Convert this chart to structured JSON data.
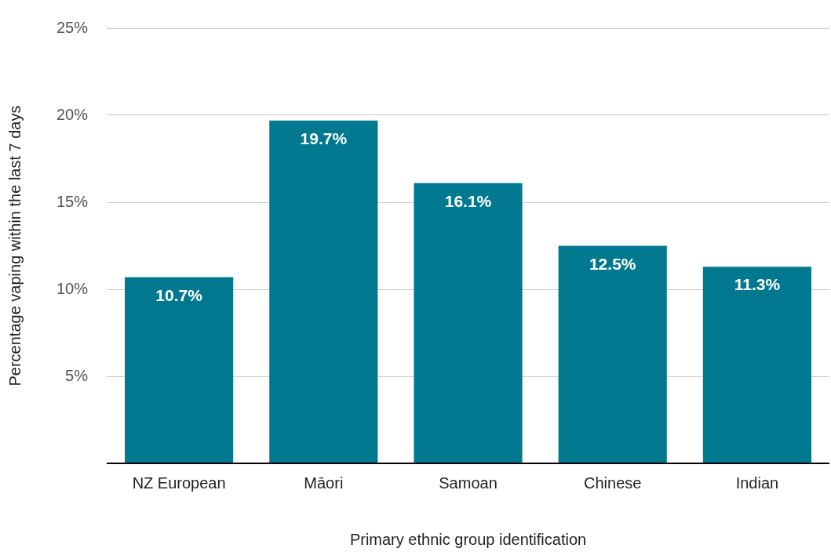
{
  "chart_data": {
    "type": "bar",
    "xlabel": "Primary ethnic group identification",
    "ylabel": "Percentage vaping within the last 7 days",
    "categories": [
      "NZ European",
      "Māori",
      "Samoan",
      "Chinese",
      "Indian"
    ],
    "values": [
      10.7,
      19.7,
      16.1,
      12.5,
      11.3
    ],
    "value_labels": [
      "10.7%",
      "19.7%",
      "16.1%",
      "12.5%",
      "11.3%"
    ],
    "color": "#007890",
    "ylim": [
      0,
      25
    ],
    "yticks": [
      {
        "value": 0,
        "label": null
      },
      {
        "value": 5,
        "label": "5%"
      },
      {
        "value": 10,
        "label": "10%"
      },
      {
        "value": 15,
        "label": "15%"
      },
      {
        "value": 20,
        "label": "20%"
      },
      {
        "value": 25,
        "label": "25%"
      }
    ],
    "grid": "y",
    "legend": false
  }
}
